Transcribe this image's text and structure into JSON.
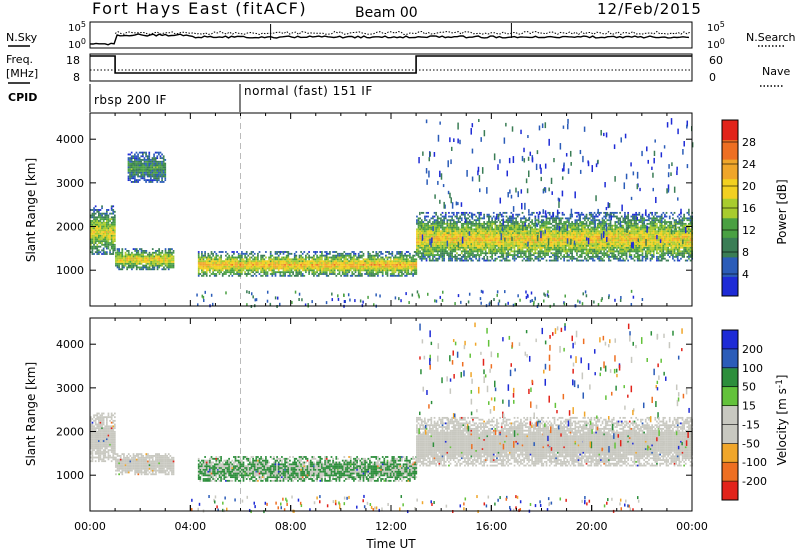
{
  "header": {
    "station": "Fort Hays East (fitACF)",
    "beam": "Beam 00",
    "date": "12/Feb/2015"
  },
  "top_panels": {
    "nsky_label": "N.Sky",
    "nsearch_label": "N.Search",
    "noise_ticks_left": [
      "10^5",
      "10^0"
    ],
    "noise_ticks_right": [
      "10^5",
      "10^0"
    ],
    "freq_label_1": "Freq.",
    "freq_label_2": "[MHz]",
    "freq_ticks": [
      "18",
      "8"
    ],
    "nave_label": "Nave",
    "nave_ticks": [
      "60",
      "0"
    ],
    "cpid_label": "CPID",
    "cpid_segments": [
      {
        "label": "rbsp 200 IF",
        "start_h": 0,
        "end_h": 6
      },
      {
        "label": "normal (fast) 151 IF",
        "start_h": 6,
        "end_h": 24
      }
    ]
  },
  "x_axis": {
    "label": "Time UT",
    "ticks": [
      "00:00",
      "04:00",
      "08:00",
      "12:00",
      "16:00",
      "20:00",
      "00:00"
    ]
  },
  "chart_data": [
    {
      "type": "heatmap",
      "title": "",
      "ylabel": "Slant Range [km]",
      "xlabel": "",
      "xlim": [
        0,
        24
      ],
      "ylim": [
        180,
        4600
      ],
      "yticks": [
        "1000",
        "2000",
        "3000",
        "4000"
      ],
      "colorbar": {
        "label": "Power [dB]",
        "ticks": [
          "28",
          "24",
          "20",
          "16",
          "12",
          "8",
          "4"
        ],
        "colors": [
          "#1e2bd6",
          "#2b5cb8",
          "#3a7d55",
          "#4aa042",
          "#a8cc2e",
          "#f2d020",
          "#f0a62a",
          "#ee6f22",
          "#e2231a"
        ]
      },
      "echo_regions": [
        {
          "t": [
            0.0,
            1.0
          ],
          "range": [
            1350,
            2450
          ],
          "power": 18
        },
        {
          "t": [
            1.0,
            3.3
          ],
          "range": [
            1000,
            1500
          ],
          "power": 20
        },
        {
          "t": [
            1.5,
            3.0
          ],
          "range": [
            3000,
            3700
          ],
          "power": 10
        },
        {
          "t": [
            4.3,
            13.0
          ],
          "range": [
            850,
            1400
          ],
          "power": 22
        },
        {
          "t": [
            13.0,
            24.0
          ],
          "range": [
            1200,
            2300
          ],
          "power": 20
        }
      ]
    },
    {
      "type": "heatmap",
      "title": "",
      "ylabel": "Slant Range [km]",
      "xlabel": "Time UT",
      "xlim": [
        0,
        24
      ],
      "ylim": [
        180,
        4600
      ],
      "yticks": [
        "1000",
        "2000",
        "3000",
        "4000"
      ],
      "colorbar": {
        "label": "Velocity [m s^-1]",
        "ticks": [
          "200",
          "100",
          "50",
          "15",
          "-15",
          "-50",
          "-100",
          "-200"
        ],
        "colors": [
          "#e2231a",
          "#ee6f22",
          "#f0a62a",
          "#c8c8c0",
          "#c8c8c0",
          "#63c23a",
          "#2c8e3b",
          "#2b5cb8",
          "#1e2bd6"
        ]
      },
      "echo_regions": [
        {
          "t": [
            0.0,
            1.0
          ],
          "range": [
            1300,
            2400
          ],
          "velocity": 0
        },
        {
          "t": [
            1.0,
            3.3
          ],
          "range": [
            1000,
            1500
          ],
          "velocity": 0
        },
        {
          "t": [
            4.3,
            13.0
          ],
          "range": [
            850,
            1400
          ],
          "velocity": 30
        },
        {
          "t": [
            13.0,
            24.0
          ],
          "range": [
            1200,
            2300
          ],
          "velocity": 0
        }
      ]
    }
  ]
}
